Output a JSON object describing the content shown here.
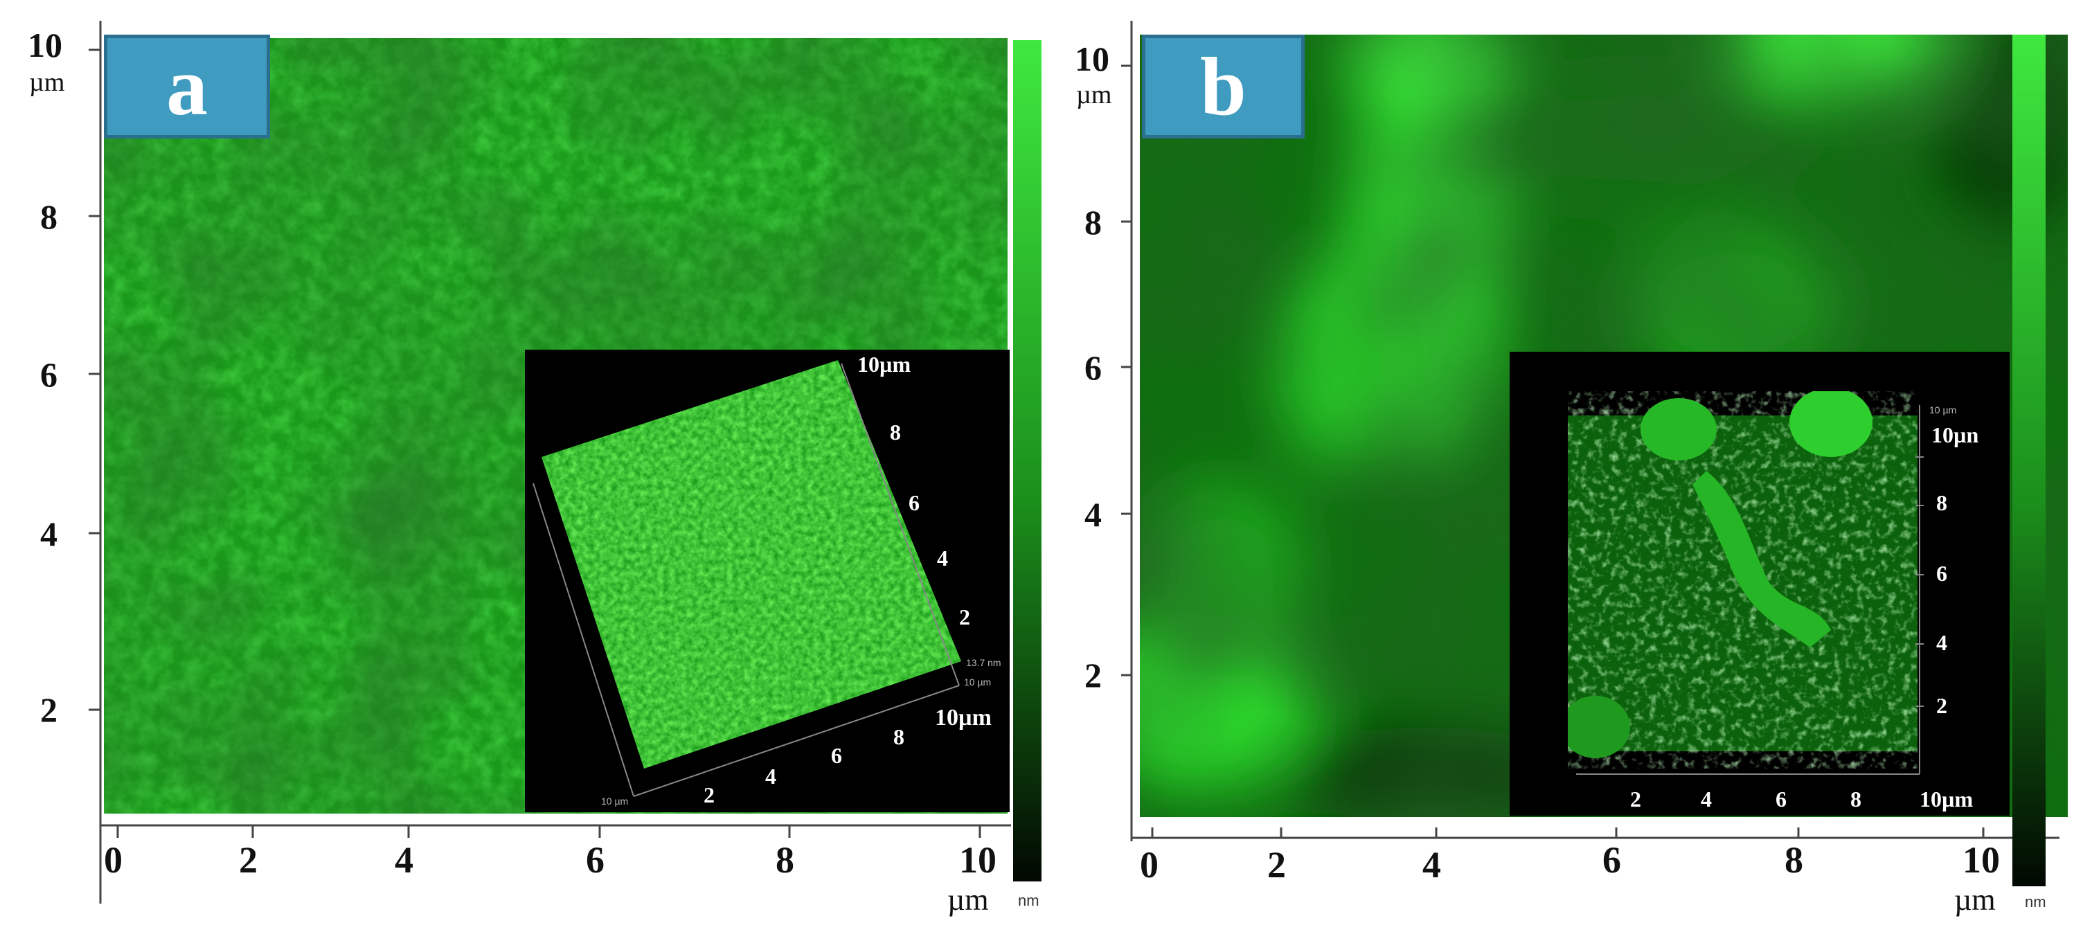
{
  "panels": [
    {
      "label": "a",
      "y_ticks": [
        "10",
        "8",
        "6",
        "4",
        "2"
      ],
      "y_unit": "µm",
      "x_ticks": [
        "0",
        "2",
        "4",
        "6",
        "8",
        "10"
      ],
      "x_unit": "µm",
      "colorbar_unit": "nm",
      "inset": {
        "corner_label": "10µm",
        "right_ticks": [
          "8",
          "6",
          "4",
          "2"
        ],
        "bottom_end_label": "10µm",
        "bottom_ticks": [
          "2",
          "4",
          "6",
          "8"
        ],
        "tiny_labels": [
          "13.7 nm",
          "10 µm",
          "10 µm"
        ]
      }
    },
    {
      "label": "b",
      "y_ticks": [
        "10",
        "8",
        "6",
        "4",
        "2"
      ],
      "y_unit": "µm",
      "x_ticks": [
        "0",
        "2",
        "4",
        "6",
        "8",
        "10"
      ],
      "x_unit": "µm",
      "colorbar_unit": "nm",
      "inset": {
        "corner_label": "10µn",
        "right_ticks": [
          "8",
          "6",
          "4",
          "2"
        ],
        "bottom_end_label": "10µm",
        "bottom_ticks": [
          "2",
          "4",
          "6",
          "8"
        ],
        "tiny_labels": [
          "10 µm"
        ]
      }
    }
  ],
  "colors": {
    "afm_green": "#1fd01f",
    "afm_dark": "#0a3a0a",
    "badge_fill": "#3f9cc0",
    "badge_border": "#2a6f8e"
  }
}
